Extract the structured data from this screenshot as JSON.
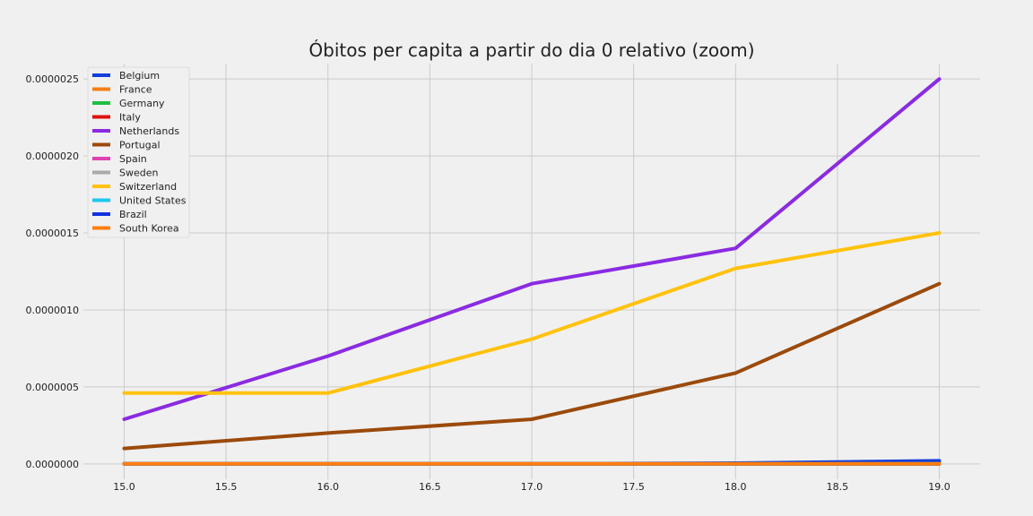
{
  "chart_data": {
    "type": "line",
    "title": "Óbitos per capita a partir do dia 0 relativo (zoom)",
    "xlabel": "",
    "ylabel": "",
    "xlim": [
      14.8,
      19.2
    ],
    "ylim": [
      -1e-07,
      2.6e-06
    ],
    "x_ticks": [
      15.0,
      15.5,
      16.0,
      16.5,
      17.0,
      17.5,
      18.0,
      18.5,
      19.0
    ],
    "x_tick_labels": [
      "15.0",
      "15.5",
      "16.0",
      "16.5",
      "17.0",
      "17.5",
      "18.0",
      "18.5",
      "19.0"
    ],
    "y_ticks": [
      0,
      5e-07,
      1e-06,
      1.5e-06,
      2e-06,
      2.5e-06
    ],
    "y_tick_labels": [
      "0.0000000",
      "0.0000005",
      "0.0000010",
      "0.0000015",
      "0.0000020",
      "0.0000025"
    ],
    "grid": true,
    "legend_position": "upper-left",
    "x": [
      15,
      16,
      17,
      18,
      19
    ],
    "series": [
      {
        "name": "Belgium",
        "color": "#0f3fdc",
        "values": [
          0,
          0,
          0,
          5e-09,
          2e-08
        ]
      },
      {
        "name": "France",
        "color": "#f57f17",
        "values": [
          0,
          0,
          0,
          0,
          0
        ]
      },
      {
        "name": "Germany",
        "color": "#1fbf3f",
        "values": [
          0,
          0,
          0,
          0,
          0
        ]
      },
      {
        "name": "Italy",
        "color": "#e01010",
        "values": [
          0,
          0,
          0,
          0,
          0
        ]
      },
      {
        "name": "Netherlands",
        "color": "#8a2be2",
        "values": [
          2.9e-07,
          7e-07,
          1.17e-06,
          1.4e-06,
          2.5e-06
        ]
      },
      {
        "name": "Portugal",
        "color": "#9b4a0b",
        "values": [
          1e-07,
          2e-07,
          2.9e-07,
          5.9e-07,
          1.17e-06
        ]
      },
      {
        "name": "Spain",
        "color": "#e040b0",
        "values": [
          0,
          0,
          0,
          0,
          0
        ]
      },
      {
        "name": "Sweden",
        "color": "#a9a9a9",
        "values": [
          0,
          0,
          0,
          0,
          0
        ]
      },
      {
        "name": "Switzerland",
        "color": "#ffc20e",
        "values": [
          4.6e-07,
          4.6e-07,
          8.1e-07,
          1.27e-06,
          1.5e-06
        ]
      },
      {
        "name": "United States",
        "color": "#1ec8f0",
        "values": [
          0,
          0,
          0,
          0,
          0
        ]
      },
      {
        "name": "Brazil",
        "color": "#1030e0",
        "values": [
          0,
          0,
          0,
          0,
          0
        ]
      },
      {
        "name": "South Korea",
        "color": "#ff7f0e",
        "values": [
          0,
          0,
          0,
          0,
          0
        ]
      }
    ]
  }
}
